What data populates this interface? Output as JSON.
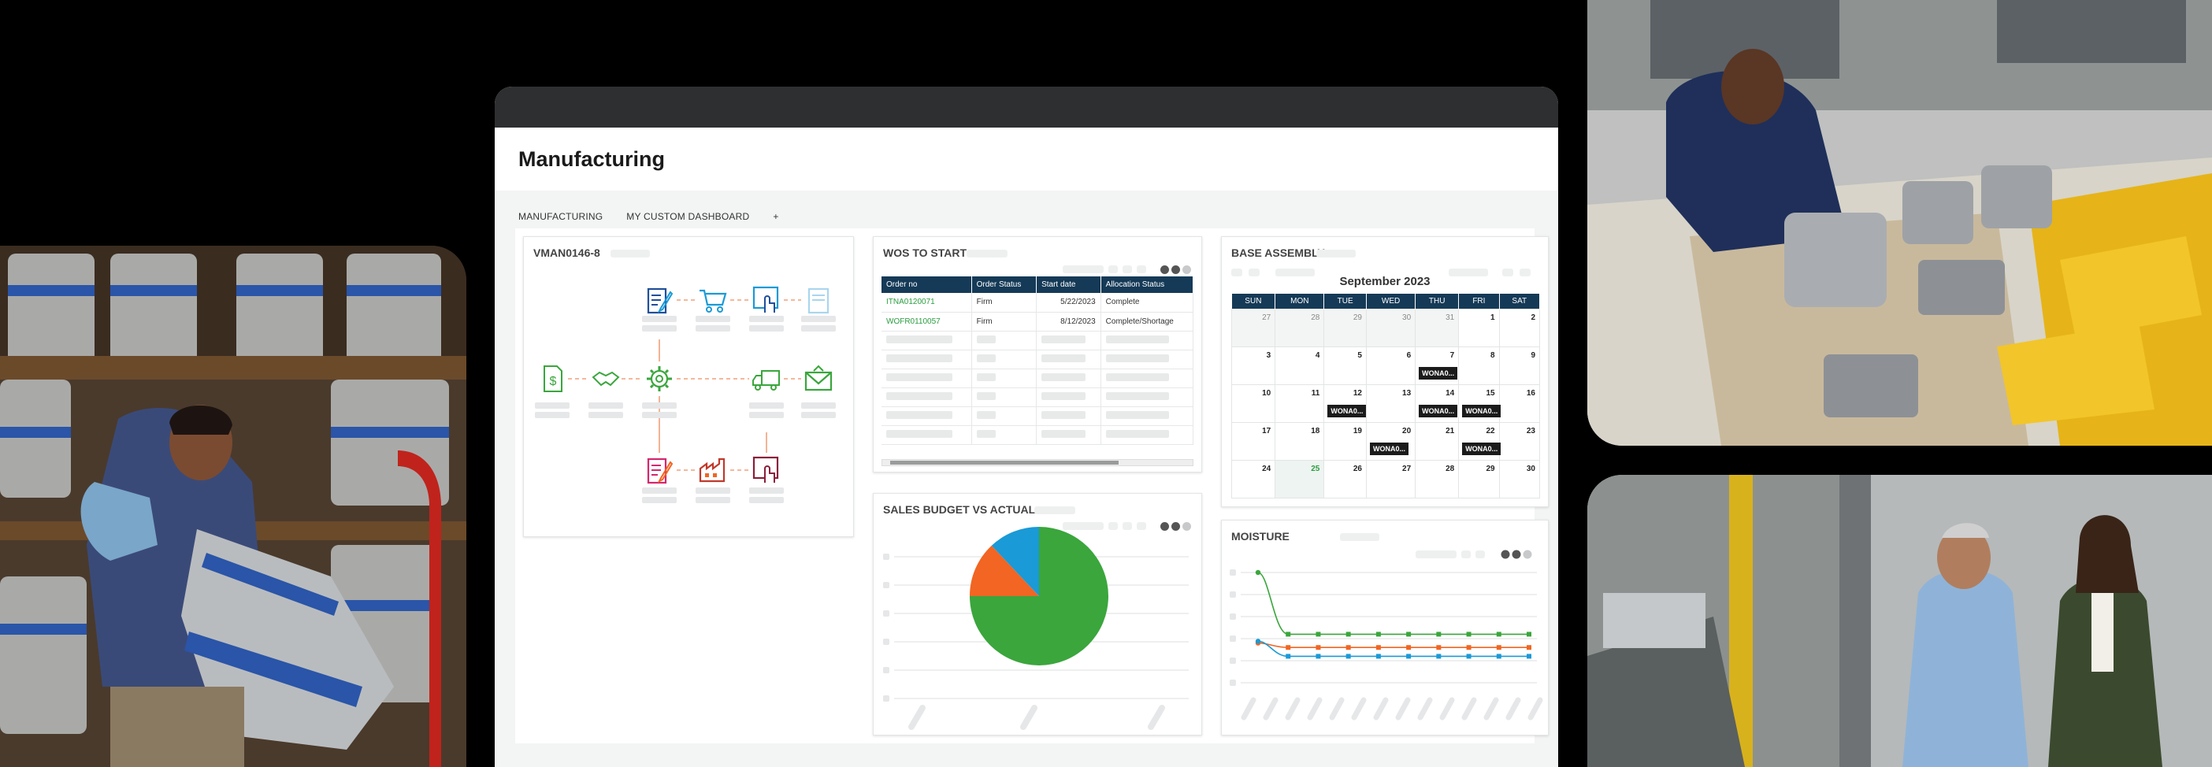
{
  "app": {
    "title": "Manufacturing",
    "tabs": [
      {
        "label": "MANUFACTURING",
        "active": false
      },
      {
        "label": "MY CUSTOM DASHBOARD",
        "active": true
      },
      {
        "label": "+",
        "active": false
      }
    ]
  },
  "process_card": {
    "title": "VMAN0146-8",
    "icons": [
      "document-dollar-icon",
      "handshake-icon",
      "gear-icon",
      "delivery-truck-icon",
      "envelope-icon",
      "clipboard-edit-icon",
      "shopping-cart-icon",
      "touch-screen-icon",
      "tablet-icon",
      "clipboard-edit-icon",
      "factory-icon",
      "touch-screen-icon"
    ]
  },
  "wos": {
    "title": "WOS TO START",
    "columns": [
      "Order no",
      "Order Status",
      "Start date",
      "Allocation Status"
    ],
    "rows": [
      [
        "ITNA0120071",
        "Firm",
        "5/22/2023",
        "Complete"
      ],
      [
        "WOFR0110057",
        "Firm",
        "8/12/2023",
        "Complete/Shortage"
      ]
    ]
  },
  "calendar": {
    "title": "BASE ASSEMBLY",
    "month": "September 2023",
    "days": [
      "SUN",
      "MON",
      "TUE",
      "WED",
      "THU",
      "FRI",
      "SAT"
    ],
    "weeks": [
      [
        {
          "d": "27",
          "m": true
        },
        {
          "d": "28",
          "m": true
        },
        {
          "d": "29",
          "m": true
        },
        {
          "d": "30",
          "m": true
        },
        {
          "d": "31",
          "m": true
        },
        {
          "d": "1"
        },
        {
          "d": "2"
        }
      ],
      [
        {
          "d": "3"
        },
        {
          "d": "4"
        },
        {
          "d": "5"
        },
        {
          "d": "6"
        },
        {
          "d": "7",
          "e": "WONA0..."
        },
        {
          "d": "8"
        },
        {
          "d": "9"
        }
      ],
      [
        {
          "d": "10"
        },
        {
          "d": "11"
        },
        {
          "d": "12",
          "e": "WONA0..."
        },
        {
          "d": "13"
        },
        {
          "d": "14",
          "e": "WONA0..."
        },
        {
          "d": "15",
          "e": "WONA0..."
        },
        {
          "d": "16"
        }
      ],
      [
        {
          "d": "17"
        },
        {
          "d": "18"
        },
        {
          "d": "19"
        },
        {
          "d": "20",
          "e": "WONA0..."
        },
        {
          "d": "21"
        },
        {
          "d": "22",
          "e": "WONA0..."
        },
        {
          "d": "23"
        }
      ],
      [
        {
          "d": "24"
        },
        {
          "d": "25",
          "t": true
        },
        {
          "d": "26"
        },
        {
          "d": "27"
        },
        {
          "d": "28"
        },
        {
          "d": "29"
        },
        {
          "d": "30"
        }
      ]
    ]
  },
  "pie": {
    "title": "SALES BUDGET VS ACTUAL",
    "chart_data": {
      "type": "pie",
      "values": [
        75,
        13,
        12
      ],
      "colors": [
        "#3aa63c",
        "#f26522",
        "#1a9ad6"
      ]
    }
  },
  "moisture": {
    "title": "MOISTURE",
    "chart_data": {
      "type": "line",
      "x": [
        1,
        2,
        3,
        4,
        5,
        6,
        7,
        8,
        9,
        10
      ],
      "series": [
        {
          "values": [
            100,
            30,
            30,
            30,
            30,
            30,
            30,
            30,
            30,
            30
          ],
          "color": "#3aa63c"
        },
        {
          "values": [
            20,
            15,
            15,
            15,
            15,
            15,
            15,
            15,
            15,
            15
          ],
          "color": "#f26522"
        },
        {
          "values": [
            22,
            5,
            5,
            5,
            5,
            5,
            5,
            5,
            5,
            5
          ],
          "color": "#1a9ad6"
        }
      ]
    }
  },
  "photos": [
    {
      "id": "warehouse-worker-keg-photo"
    },
    {
      "id": "technician-assembling-toasters-photo"
    },
    {
      "id": "factory-managers-walking-photo"
    }
  ]
}
